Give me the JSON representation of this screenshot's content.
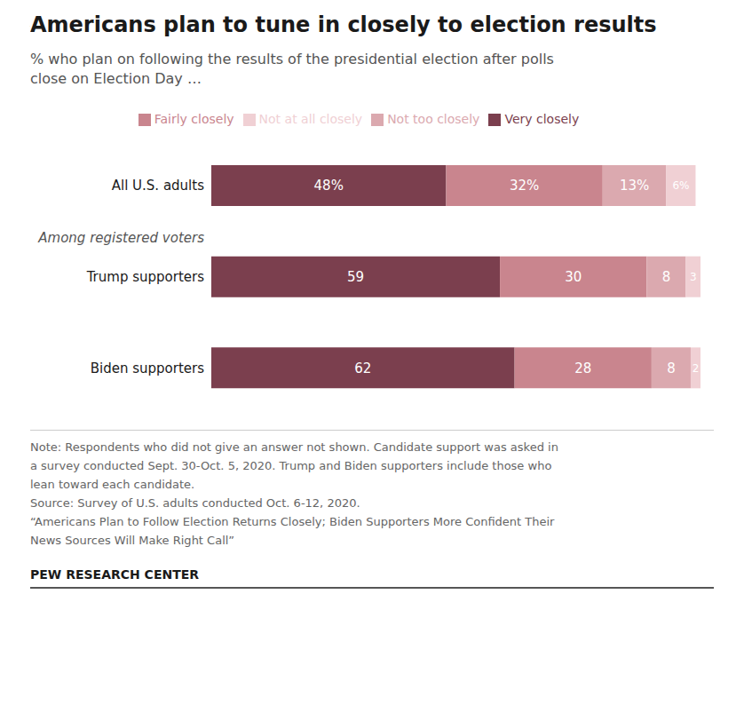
{
  "chart_data": {
    "type": "bar",
    "orientation": "horizontal",
    "stacked": true,
    "title": "Americans plan to tune in closely to election results",
    "subtitle": "% who plan on following the results of the presidential election after polls close on Election Day …",
    "categories": [
      "All U.S. adults",
      "Trump supporters",
      "Biden supporters"
    ],
    "series": [
      {
        "name": "Very closely",
        "color": "#7b3f4e",
        "values": [
          48,
          59,
          62
        ],
        "value_labels": [
          "48%",
          "59",
          "62"
        ]
      },
      {
        "name": "Fairly closely",
        "color": "#c9858e",
        "values": [
          32,
          30,
          28
        ],
        "value_labels": [
          "32%",
          "30",
          "28"
        ]
      },
      {
        "name": "Not too closely",
        "color": "#dba9af",
        "values": [
          13,
          8,
          8
        ],
        "value_labels": [
          "13%",
          "8",
          "8"
        ]
      },
      {
        "name": "Not at all closely",
        "color": "#f0d0d4",
        "values": [
          6,
          3,
          2
        ],
        "value_labels": [
          "6%",
          "3",
          "2"
        ]
      }
    ],
    "xlim": [
      0,
      102
    ],
    "data_labels": true,
    "tick_labels": "y",
    "grid": false,
    "legend": "top",
    "annotations": [
      "Among registered voters",
      "Note: Respondents who did not give an answer not shown. Candidate support was asked in",
      "a survey conducted Sept. 30-Oct. 5, 2020. Trump and Biden supporters include those who",
      "lean toward each candidate.",
      "Source: Survey of U.S. adults conducted Oct. 6-12, 2020.",
      "“Americans Plan to Follow Election Returns Closely; Biden Supporters More Confident Their",
      "News Sources Will Make Right Call”",
      "PEW RESEARCH CENTER"
    ]
  }
}
